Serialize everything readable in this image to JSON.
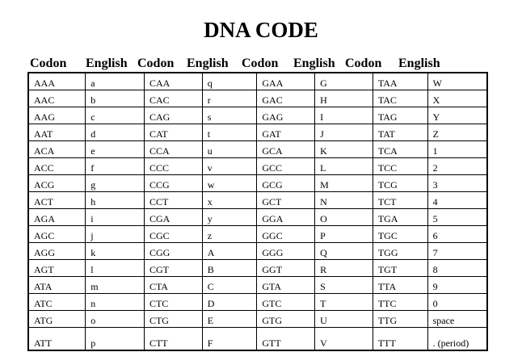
{
  "title": "DNA CODE",
  "headers": [
    "Codon",
    "English",
    "Codon",
    "English",
    "Codon",
    "English",
    "Codon",
    "English"
  ],
  "rows": [
    [
      "AAA",
      "a",
      "CAA",
      "q",
      "GAA",
      "G",
      "TAA",
      "W"
    ],
    [
      "AAC",
      "b",
      "CAC",
      "r",
      "GAC",
      "H",
      "TAC",
      "X"
    ],
    [
      "AAG",
      "c",
      "CAG",
      "s",
      "GAG",
      "I",
      "TAG",
      "Y"
    ],
    [
      "AAT",
      "d",
      "CAT",
      "t",
      "GAT",
      "J",
      "TAT",
      "Z"
    ],
    [
      "ACA",
      "e",
      "CCA",
      "u",
      "GCA",
      "K",
      "TCA",
      "1"
    ],
    [
      "ACC",
      "f",
      "CCC",
      "v",
      "GCC",
      "L",
      "TCC",
      "2"
    ],
    [
      "ACG",
      "g",
      "CCG",
      "w",
      "GCG",
      "M",
      "TCG",
      "3"
    ],
    [
      "ACT",
      "h",
      "CCT",
      "x",
      "GCT",
      "N",
      "TCT",
      "4"
    ],
    [
      "AGA",
      "i",
      "CGA",
      "y",
      "GGA",
      "O",
      "TGA",
      "5"
    ],
    [
      "AGC",
      "j",
      "CGC",
      "z",
      "GGC",
      "P",
      "TGC",
      "6"
    ],
    [
      "AGG",
      "k",
      "CGG",
      "A",
      "GGG",
      "Q",
      "TGG",
      "7"
    ],
    [
      "AGT",
      "l",
      "CGT",
      "B",
      "GGT",
      "R",
      "TGT",
      "8"
    ],
    [
      "ATA",
      "m",
      "CTA",
      "C",
      "GTA",
      "S",
      "TTA",
      "9"
    ],
    [
      "ATC",
      "n",
      "CTC",
      "D",
      "GTC",
      "T",
      "TTC",
      "0"
    ],
    [
      "ATG",
      "o",
      "CTG",
      "E",
      "GTG",
      "U",
      "TTG",
      "space"
    ],
    [
      "ATT",
      "p",
      "CTT",
      "F",
      "GTT",
      "V",
      "TTT",
      ". (period)"
    ]
  ]
}
